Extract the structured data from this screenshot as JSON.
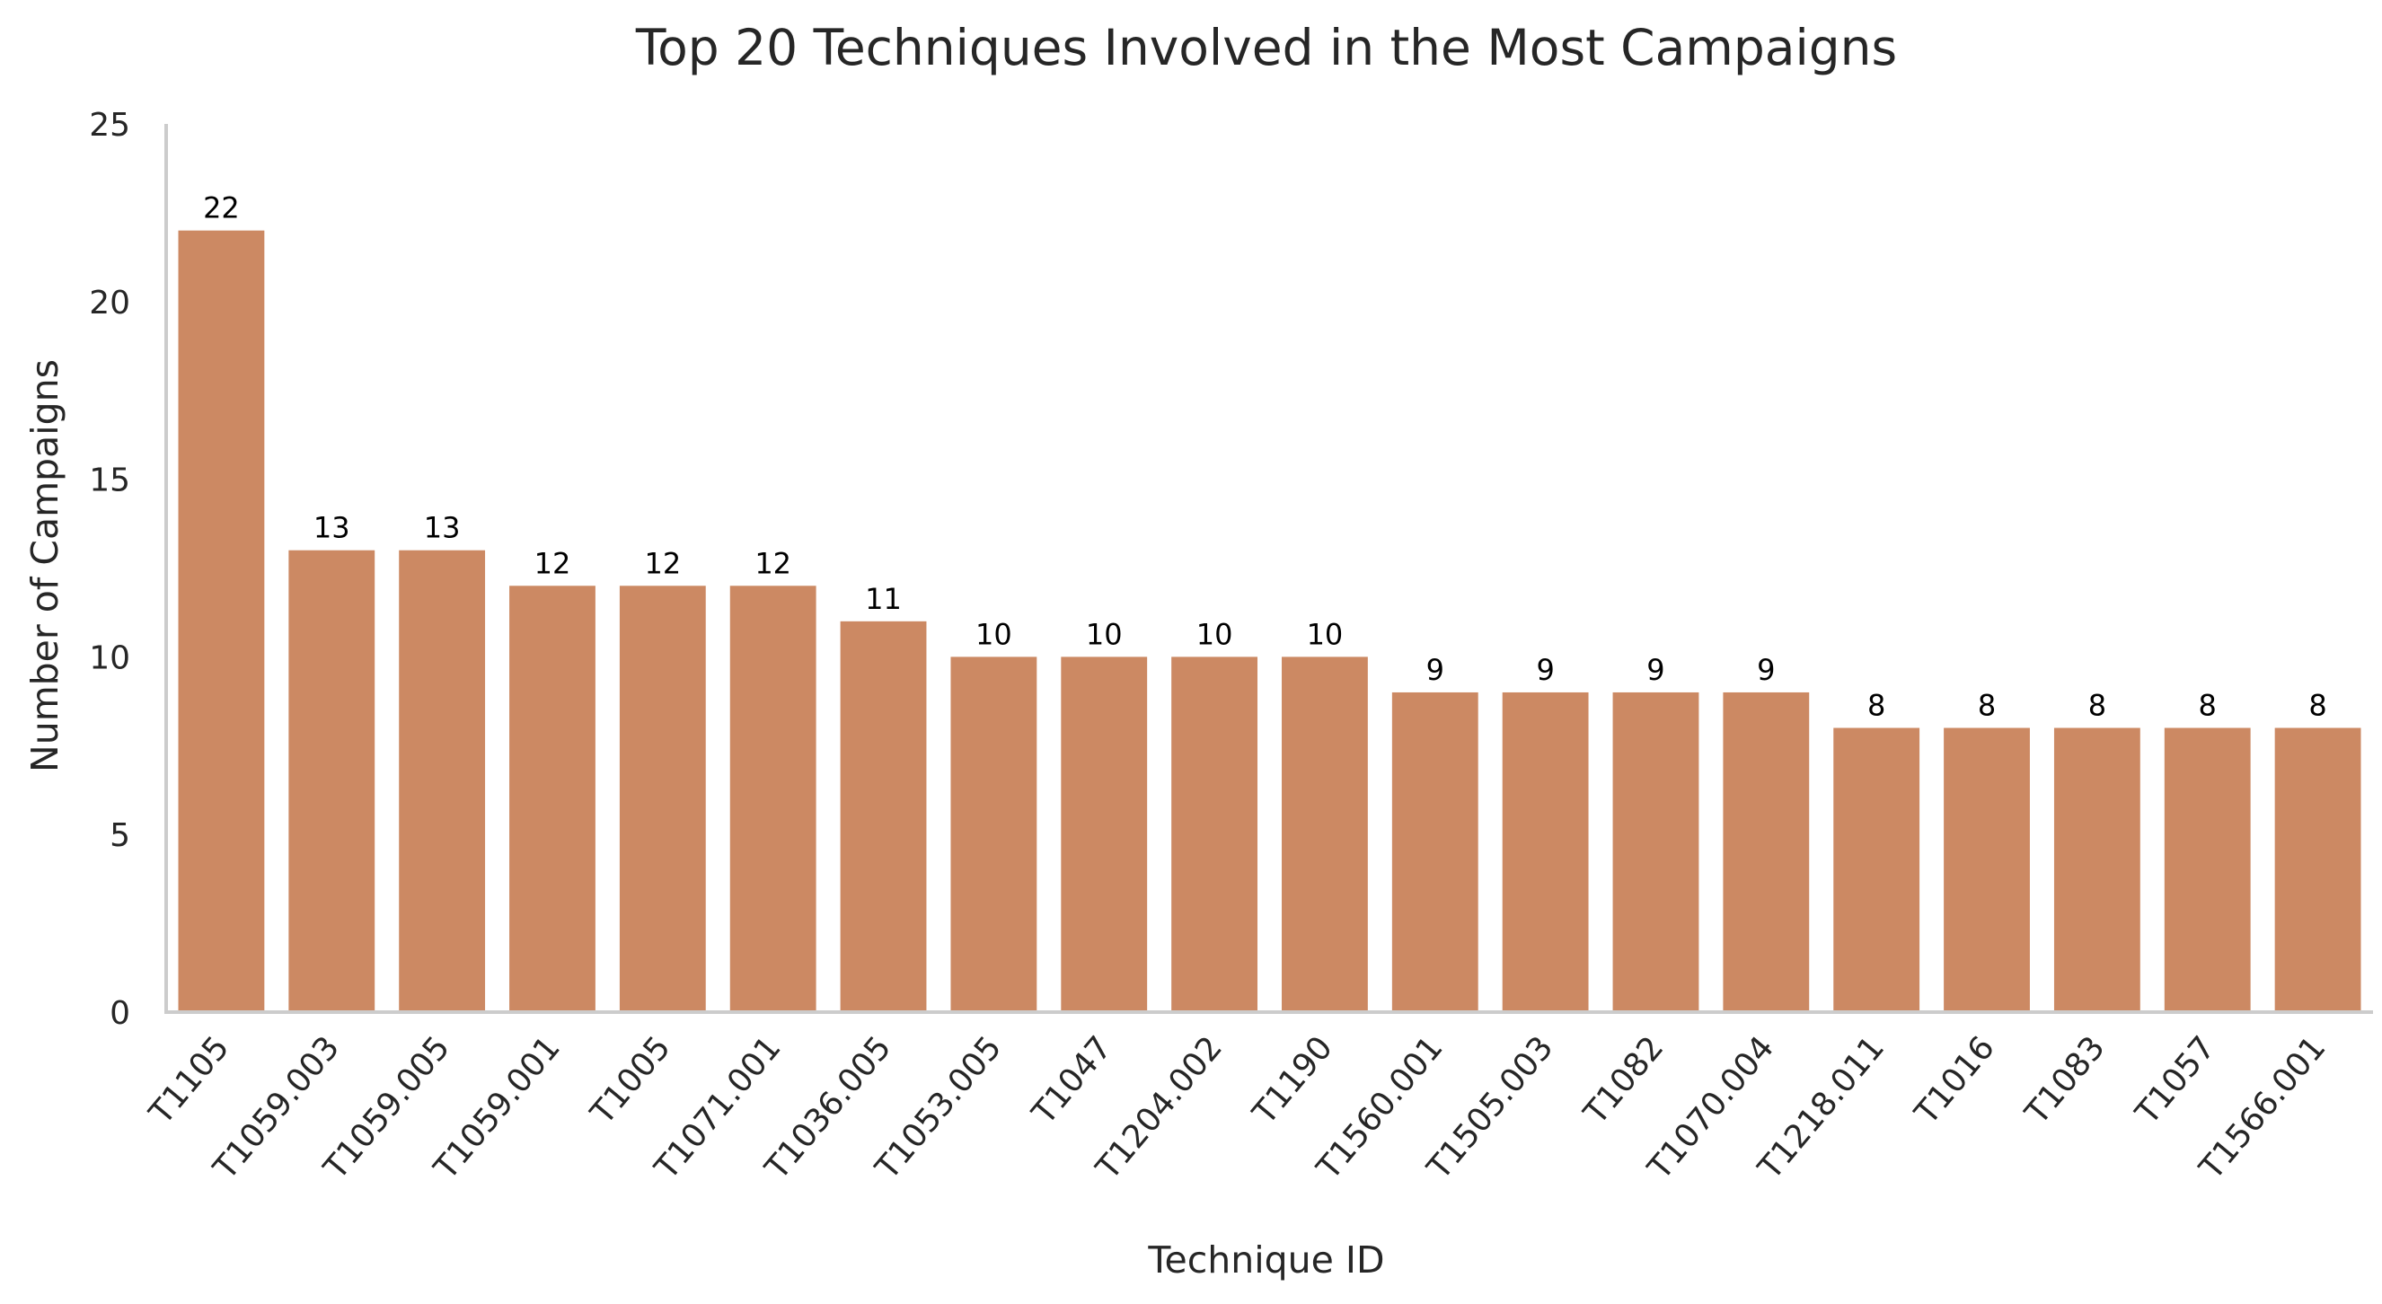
{
  "chart_data": {
    "type": "bar",
    "title": "Top 20 Techniques Involved in the Most Campaigns",
    "xlabel": "Technique ID",
    "ylabel": "Number of Campaigns",
    "categories": [
      "T1105",
      "T1059.003",
      "T1059.005",
      "T1059.001",
      "T1005",
      "T1071.001",
      "T1036.005",
      "T1053.005",
      "T1047",
      "T1204.002",
      "T1190",
      "T1560.001",
      "T1505.003",
      "T1082",
      "T1070.004",
      "T1218.011",
      "T1016",
      "T1083",
      "T1057",
      "T1566.001"
    ],
    "values": [
      22,
      13,
      13,
      12,
      12,
      12,
      11,
      10,
      10,
      10,
      10,
      9,
      9,
      9,
      9,
      8,
      8,
      8,
      8,
      8
    ],
    "ylim": [
      0,
      25
    ],
    "yticks": [
      "0",
      "5",
      "10",
      "15",
      "20",
      "25"
    ],
    "grid": false,
    "bar_color": "#cc8963",
    "data_labels": true
  }
}
